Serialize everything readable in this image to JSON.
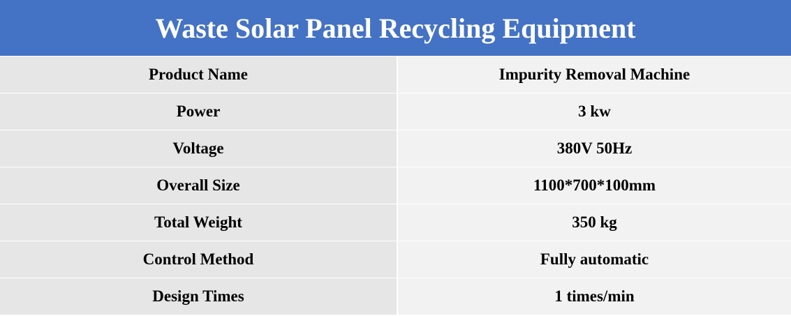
{
  "header": {
    "title": "Waste Solar Panel Recycling Equipment"
  },
  "table": {
    "rows": [
      [
        "Product Name",
        "Impurity Removal Machine"
      ],
      [
        "Power",
        "3 kw"
      ],
      [
        "Voltage",
        "380V 50Hz"
      ],
      [
        "Overall Size",
        "1100*700*100mm"
      ],
      [
        "Total Weight",
        "350 kg"
      ],
      [
        "Control Method",
        "Fully automatic"
      ],
      [
        "Design Times",
        "1 times/min"
      ]
    ]
  }
}
